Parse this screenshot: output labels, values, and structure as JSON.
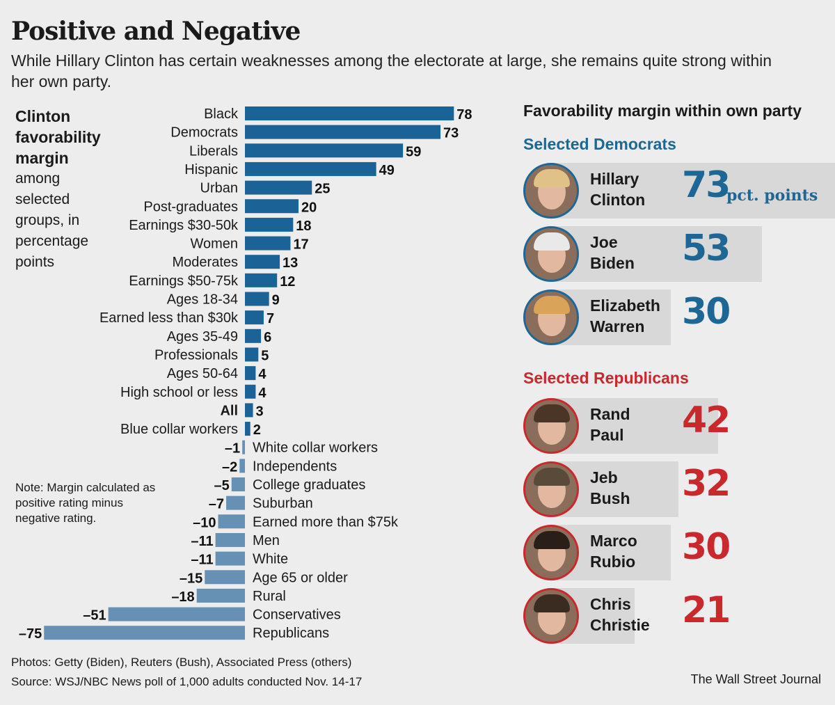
{
  "title": "Positive and Negative",
  "subtitle": "While Hillary Clinton has certain weaknesses among the electorate at large, she remains quite strong within her own party.",
  "side_label": {
    "bold_lines": [
      "Clinton",
      "favorability",
      "margin"
    ],
    "rest": "among selected groups, in percentage points"
  },
  "note": "Note: Margin calculated as positive rating minus negative rating.",
  "chart_data": {
    "type": "bar",
    "orientation": "horizontal",
    "title": "Clinton favorability margin among selected groups, in percentage points",
    "categories": [
      "Black",
      "Democrats",
      "Liberals",
      "Hispanic",
      "Urban",
      "Post-graduates",
      "Earnings $30-50k",
      "Women",
      "Moderates",
      "Earnings $50-75k",
      "Ages 18-34",
      "Earned less than $30k",
      "Ages 35-49",
      "Professionals",
      "Ages 50-64",
      "High school or less",
      "All",
      "Blue collar workers",
      "White collar workers",
      "Independents",
      "College graduates",
      "Suburban",
      "Earned more than $75k",
      "Men",
      "White",
      "Age 65 or older",
      "Rural",
      "Conservatives",
      "Republicans"
    ],
    "values": [
      78,
      73,
      59,
      49,
      25,
      20,
      18,
      17,
      13,
      12,
      9,
      7,
      6,
      5,
      4,
      4,
      3,
      2,
      -1,
      -2,
      -5,
      -7,
      -10,
      -11,
      -11,
      -15,
      -18,
      -51,
      -75
    ],
    "value_labels": [
      "78",
      "73",
      "59",
      "49",
      "25",
      "20",
      "18",
      "17",
      "13",
      "12",
      "9",
      "7",
      "6",
      "5",
      "4",
      "4",
      "3",
      "2",
      "–1",
      "–2",
      "–5",
      "–7",
      "–10",
      "–11",
      "–11",
      "–15",
      "–18",
      "–51",
      "–75"
    ],
    "highlight": "All",
    "colors": {
      "positive": "#1b6396",
      "negative": "#6691b4"
    },
    "xlim": [
      -75,
      78
    ]
  },
  "panel": {
    "title": "Favorability margin within own party",
    "dem_heading": "Selected Democrats",
    "rep_heading": "Selected Republicans",
    "unit_label": "pct. points",
    "democrats": [
      {
        "first": "Hillary",
        "last": "Clinton",
        "value": 73,
        "value_label": "73"
      },
      {
        "first": "Joe",
        "last": "Biden",
        "value": 53,
        "value_label": "53"
      },
      {
        "first": "Elizabeth",
        "last": "Warren",
        "value": 30,
        "value_label": "30"
      }
    ],
    "republicans": [
      {
        "first": "Rand",
        "last": "Paul",
        "value": 42,
        "value_label": "42"
      },
      {
        "first": "Jeb",
        "last": "Bush",
        "value": 32,
        "value_label": "32"
      },
      {
        "first": "Marco",
        "last": "Rubio",
        "value": 30,
        "value_label": "30"
      },
      {
        "first": "Chris",
        "last": "Christie",
        "value": 21,
        "value_label": "21"
      }
    ],
    "colors": {
      "dem": "#1e6795",
      "rep": "#c9282d",
      "bar": "#d8d8d8"
    }
  },
  "credits": {
    "photos": "Photos: Getty (Biden), Reuters (Bush), Associated Press (others)",
    "source": "Source: WSJ/NBC News poll of 1,000 adults conducted Nov. 14-17"
  },
  "publisher": "The Wall Street Journal"
}
